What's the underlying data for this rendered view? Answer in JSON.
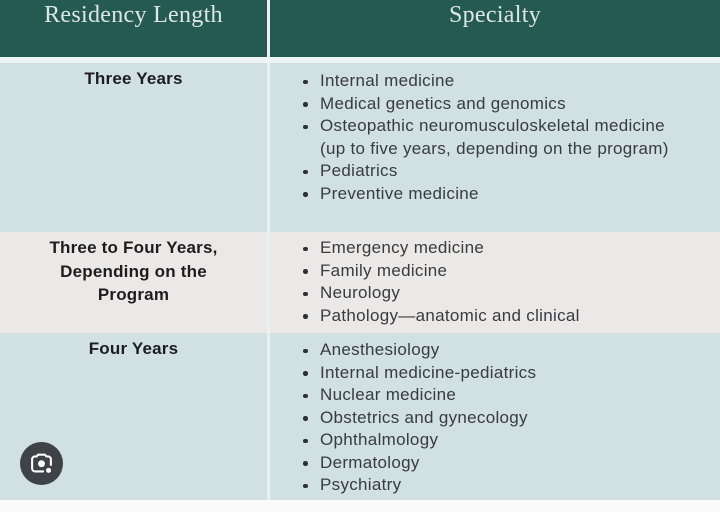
{
  "table": {
    "header": {
      "length_label": "Residency Length",
      "specialty_label": "Specialty"
    },
    "rows": [
      {
        "length": "Three Years",
        "specialties": [
          "Internal medicine",
          "Medical genetics and genomics",
          "Osteopathic neuromusculoskeletal medicine (up to five years, depending on the program)",
          "Pediatrics",
          "Preventive medicine"
        ]
      },
      {
        "length": "Three to Four Years, Depending on the Program",
        "specialties": [
          "Emergency medicine",
          "Family medicine",
          "Neurology",
          "Pathology—anatomic and clinical"
        ]
      },
      {
        "length": "Four Years",
        "specialties": [
          "Anesthesiology",
          "Internal medicine-pediatrics",
          "Nuclear medicine",
          "Obstetrics and gynecology",
          "Ophthalmology",
          "Dermatology",
          "Psychiatry"
        ]
      }
    ]
  },
  "lens_button": {
    "label": "Search inside image with Google Lens"
  },
  "colors": {
    "header_bg": "#255a52",
    "header_text": "#dce8e3",
    "row_blue": "#d0e0e3",
    "row_gray": "#eae9e7",
    "divider": "#e8f1f0",
    "body_text": "#393b3f",
    "label_text": "#1d1d1f",
    "lens_bg": "#3f4347"
  }
}
